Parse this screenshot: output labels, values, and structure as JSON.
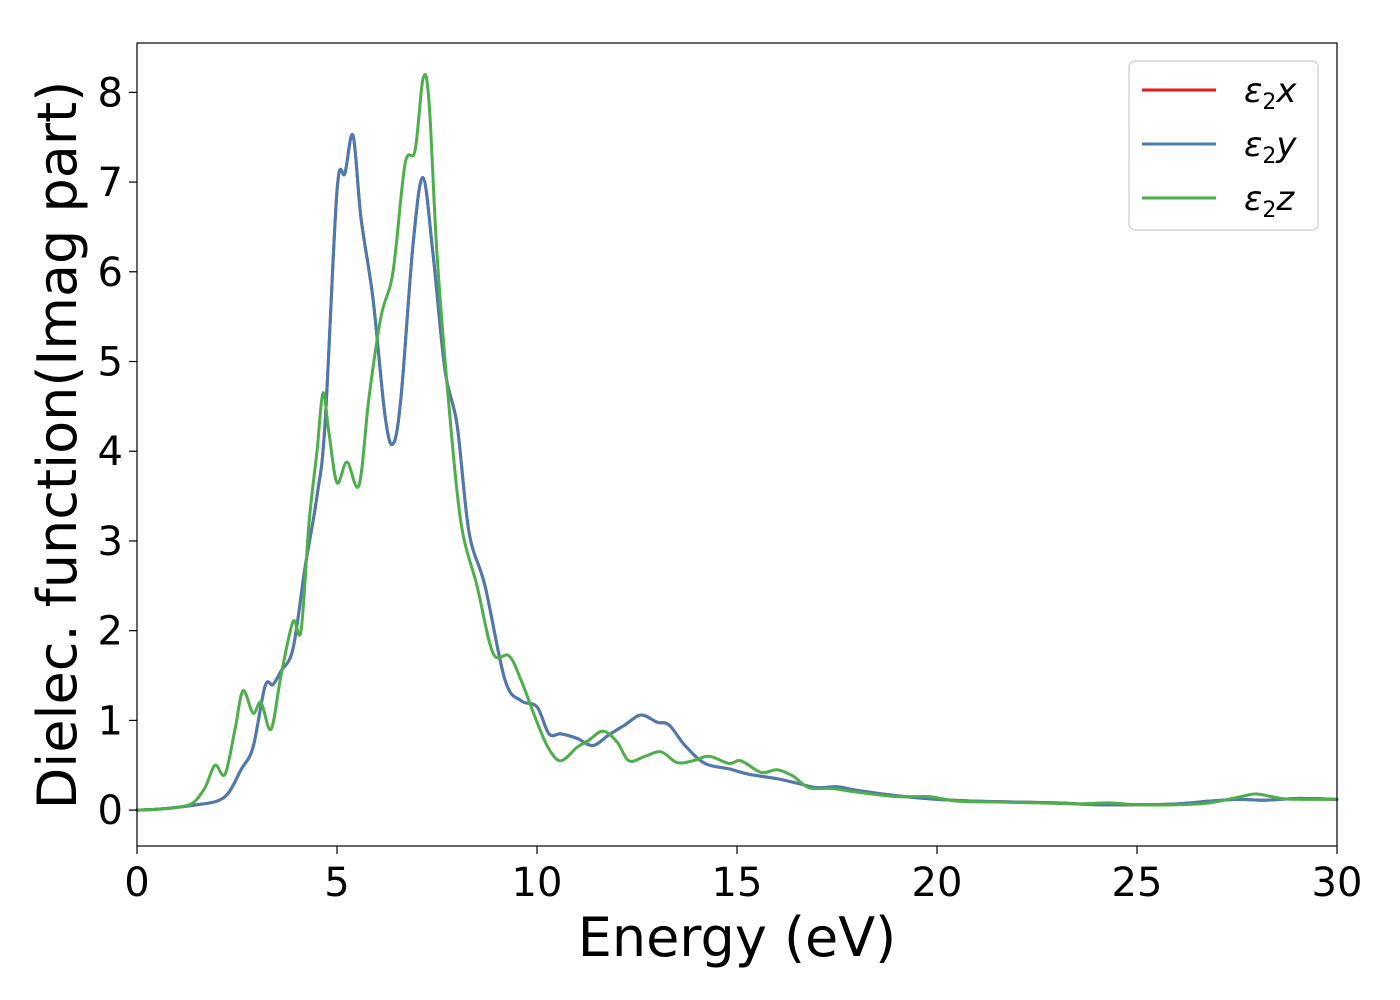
{
  "chart_data": {
    "type": "line",
    "title": "",
    "xlabel": "Energy (eV)",
    "ylabel": "Dielec. function(Imag part)",
    "xlim": [
      0,
      30
    ],
    "ylim": [
      -0.4,
      8.55
    ],
    "xticks": [
      0,
      5,
      10,
      15,
      20,
      25,
      30
    ],
    "yticks": [
      0,
      1,
      2,
      3,
      4,
      5,
      6,
      7,
      8
    ],
    "grid": false,
    "legend_position": "top-right",
    "series": [
      {
        "name": "ε2x",
        "legend_base": "ε",
        "legend_sub": "2",
        "legend_suffix": "x",
        "color": "#e41a1c",
        "x": [
          0,
          0.5,
          1.0,
          1.5,
          2.0,
          2.3,
          2.6,
          2.9,
          3.2,
          3.4,
          3.6,
          3.9,
          4.2,
          4.5,
          4.7,
          5.0,
          5.2,
          5.4,
          5.6,
          5.9,
          6.2,
          6.4,
          6.6,
          6.9,
          7.15,
          7.4,
          7.7,
          8.0,
          8.3,
          8.7,
          9.2,
          9.6,
          10.0,
          10.3,
          10.6,
          11.0,
          11.4,
          11.8,
          12.2,
          12.6,
          13.0,
          13.3,
          13.7,
          14.2,
          14.8,
          15.3,
          16.0,
          16.5,
          17.0,
          17.5,
          18.0,
          19.0,
          20.0,
          21.0,
          22.0,
          23.0,
          24.0,
          25.0,
          26.0,
          26.8,
          27.5,
          28.2,
          29.0,
          30.0
        ],
        "y": [
          0.0,
          0.01,
          0.03,
          0.06,
          0.1,
          0.2,
          0.45,
          0.7,
          1.38,
          1.4,
          1.55,
          1.8,
          2.7,
          3.5,
          4.3,
          6.9,
          7.1,
          7.52,
          6.6,
          5.7,
          4.4,
          4.08,
          4.6,
          6.3,
          7.05,
          6.2,
          4.9,
          4.3,
          3.1,
          2.5,
          1.45,
          1.22,
          1.15,
          0.85,
          0.85,
          0.8,
          0.72,
          0.84,
          0.95,
          1.06,
          0.98,
          0.95,
          0.72,
          0.52,
          0.46,
          0.4,
          0.35,
          0.3,
          0.25,
          0.26,
          0.22,
          0.16,
          0.12,
          0.1,
          0.09,
          0.08,
          0.06,
          0.06,
          0.07,
          0.1,
          0.12,
          0.11,
          0.13,
          0.12
        ]
      },
      {
        "name": "ε2y",
        "legend_base": "ε",
        "legend_sub": "2",
        "legend_suffix": "y",
        "color": "#4a7bb0",
        "x": [
          0,
          0.5,
          1.0,
          1.5,
          2.0,
          2.3,
          2.6,
          2.9,
          3.2,
          3.4,
          3.6,
          3.9,
          4.2,
          4.5,
          4.7,
          5.0,
          5.2,
          5.4,
          5.6,
          5.9,
          6.2,
          6.4,
          6.6,
          6.9,
          7.15,
          7.4,
          7.7,
          8.0,
          8.3,
          8.7,
          9.2,
          9.6,
          10.0,
          10.3,
          10.6,
          11.0,
          11.4,
          11.8,
          12.2,
          12.6,
          13.0,
          13.3,
          13.7,
          14.2,
          14.8,
          15.3,
          16.0,
          16.5,
          17.0,
          17.5,
          18.0,
          19.0,
          20.0,
          21.0,
          22.0,
          23.0,
          24.0,
          25.0,
          26.0,
          26.8,
          27.5,
          28.2,
          29.0,
          30.0
        ],
        "y": [
          0.0,
          0.01,
          0.03,
          0.06,
          0.1,
          0.2,
          0.45,
          0.7,
          1.38,
          1.4,
          1.55,
          1.8,
          2.7,
          3.5,
          4.3,
          6.9,
          7.1,
          7.52,
          6.6,
          5.7,
          4.4,
          4.08,
          4.6,
          6.3,
          7.05,
          6.2,
          4.9,
          4.3,
          3.1,
          2.5,
          1.45,
          1.22,
          1.15,
          0.85,
          0.85,
          0.8,
          0.72,
          0.84,
          0.95,
          1.06,
          0.98,
          0.95,
          0.72,
          0.52,
          0.46,
          0.4,
          0.35,
          0.3,
          0.25,
          0.26,
          0.22,
          0.16,
          0.12,
          0.1,
          0.09,
          0.08,
          0.06,
          0.06,
          0.07,
          0.1,
          0.12,
          0.11,
          0.13,
          0.12
        ]
      },
      {
        "name": "ε2z",
        "legend_base": "ε",
        "legend_sub": "2",
        "legend_suffix": "z",
        "color": "#4daf4a",
        "x": [
          0,
          0.5,
          1.0,
          1.4,
          1.7,
          1.95,
          2.2,
          2.45,
          2.65,
          2.9,
          3.1,
          3.35,
          3.6,
          3.9,
          4.1,
          4.3,
          4.5,
          4.65,
          4.8,
          5.0,
          5.25,
          5.55,
          5.8,
          6.1,
          6.4,
          6.7,
          6.95,
          7.15,
          7.3,
          7.5,
          7.8,
          8.1,
          8.5,
          8.9,
          9.3,
          9.6,
          10.0,
          10.3,
          10.6,
          11.0,
          11.3,
          11.65,
          12.0,
          12.3,
          12.7,
          13.1,
          13.5,
          13.9,
          14.3,
          14.8,
          15.1,
          15.6,
          16.0,
          16.4,
          16.8,
          17.4,
          18.0,
          19.0,
          19.8,
          20.5,
          21.5,
          22.5,
          23.5,
          24.3,
          25.0,
          26.0,
          26.8,
          27.6,
          28.0,
          28.6,
          29.2,
          30.0
        ],
        "y": [
          0.0,
          0.01,
          0.03,
          0.08,
          0.25,
          0.5,
          0.4,
          0.9,
          1.33,
          1.08,
          1.2,
          0.9,
          1.5,
          2.1,
          2.0,
          3.2,
          4.0,
          4.65,
          4.2,
          3.65,
          3.88,
          3.62,
          4.6,
          5.5,
          6.0,
          7.2,
          7.35,
          8.15,
          7.9,
          6.2,
          4.5,
          3.2,
          2.5,
          1.75,
          1.72,
          1.45,
          0.98,
          0.68,
          0.55,
          0.7,
          0.78,
          0.88,
          0.76,
          0.55,
          0.6,
          0.65,
          0.53,
          0.55,
          0.6,
          0.52,
          0.55,
          0.42,
          0.45,
          0.38,
          0.25,
          0.24,
          0.2,
          0.15,
          0.15,
          0.1,
          0.09,
          0.08,
          0.07,
          0.08,
          0.06,
          0.06,
          0.08,
          0.15,
          0.18,
          0.13,
          0.12,
          0.12
        ]
      }
    ]
  }
}
